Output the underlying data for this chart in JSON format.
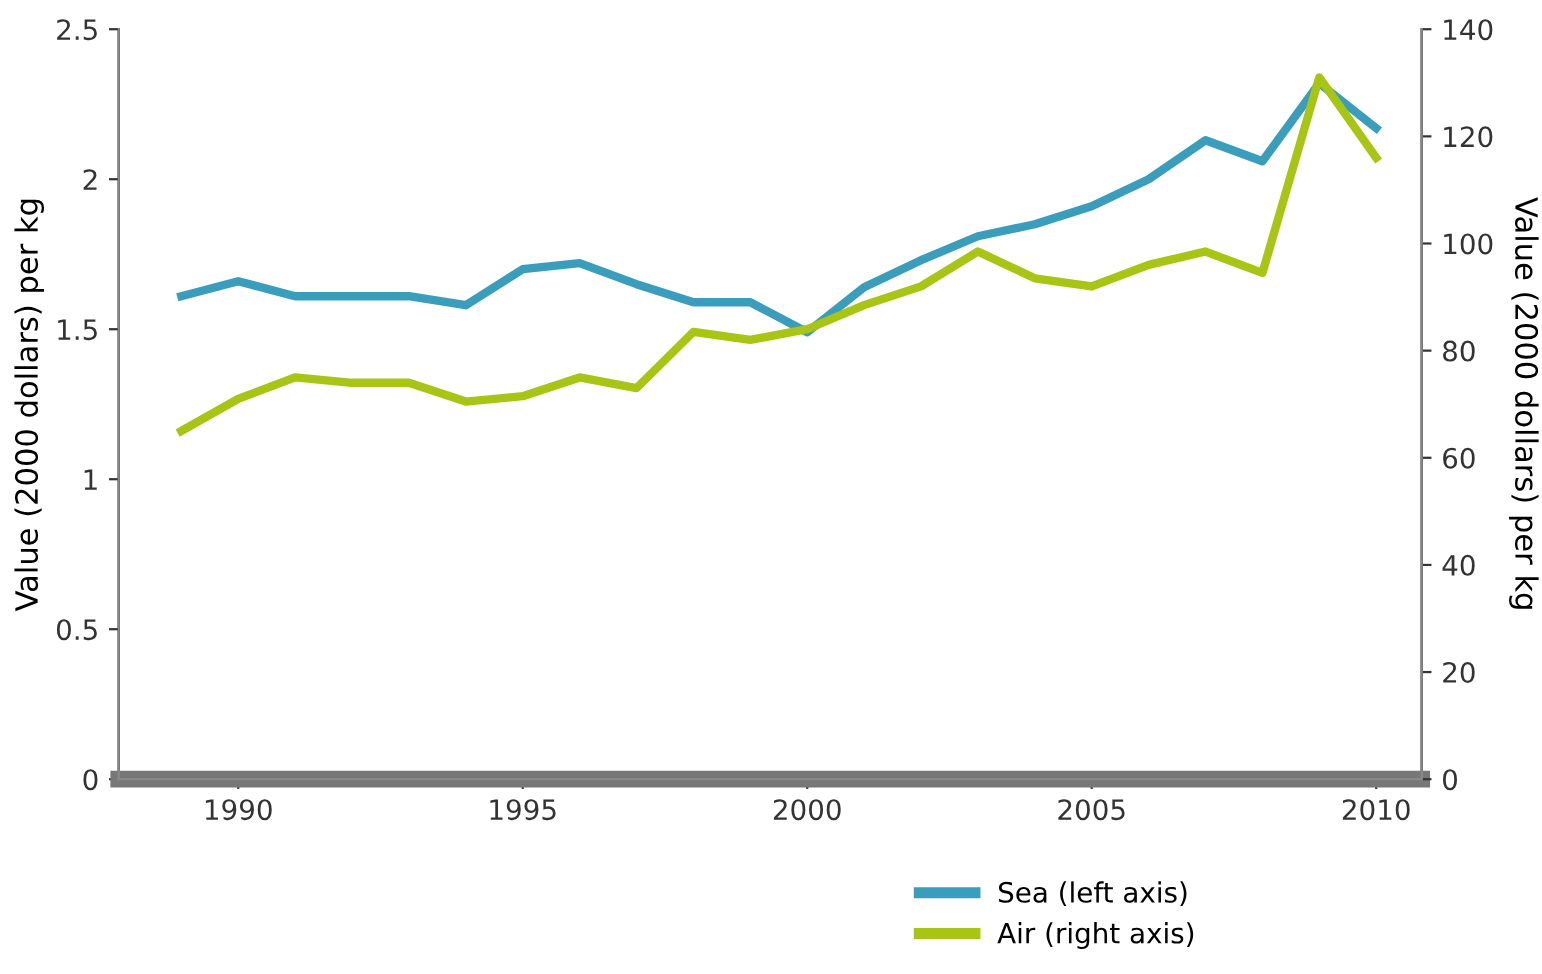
{
  "chart_data": {
    "type": "line",
    "ylabel": "Value (2000 dollars) per kg",
    "y2label": "Value (2000 dollars) per kg",
    "x": [
      1989,
      1990,
      1991,
      1992,
      1993,
      1994,
      1995,
      1996,
      1997,
      1998,
      1999,
      2000,
      2001,
      2002,
      2003,
      2004,
      2005,
      2006,
      2007,
      2008,
      2009,
      2010
    ],
    "series": [
      {
        "name": "Sea (left axis)",
        "color": "#3a9dbb",
        "values": [
          1.61,
          1.66,
          1.61,
          1.61,
          1.61,
          1.58,
          1.7,
          1.72,
          1.65,
          1.59,
          1.59,
          1.49,
          1.64,
          1.73,
          1.81,
          1.85,
          1.91,
          2.0,
          2.13,
          2.06,
          2.32,
          2.17
        ]
      },
      {
        "name": "Air (right axis)",
        "color": "#a8c414",
        "axis": "y2",
        "values": [
          65,
          71,
          75,
          74,
          74,
          70.5,
          71.5,
          75,
          73,
          83.5,
          82,
          84,
          88.5,
          92,
          98.5,
          93.5,
          92,
          96,
          98.5,
          94.5,
          131,
          116
        ]
      }
    ],
    "xlim": [
      1987.9,
      2010.8
    ],
    "xticks": [
      1990,
      1995,
      2000,
      2005,
      2010
    ],
    "ylim": [
      0,
      2.5
    ],
    "yticks": [
      0,
      0.5,
      1,
      1.5,
      2,
      2.5
    ],
    "y2lim": [
      0,
      140
    ],
    "y2ticks": [
      0,
      20,
      40,
      60,
      80,
      100,
      120,
      140
    ],
    "grid": false,
    "legend": "bottom",
    "line_style": "solid",
    "marker": "none"
  }
}
